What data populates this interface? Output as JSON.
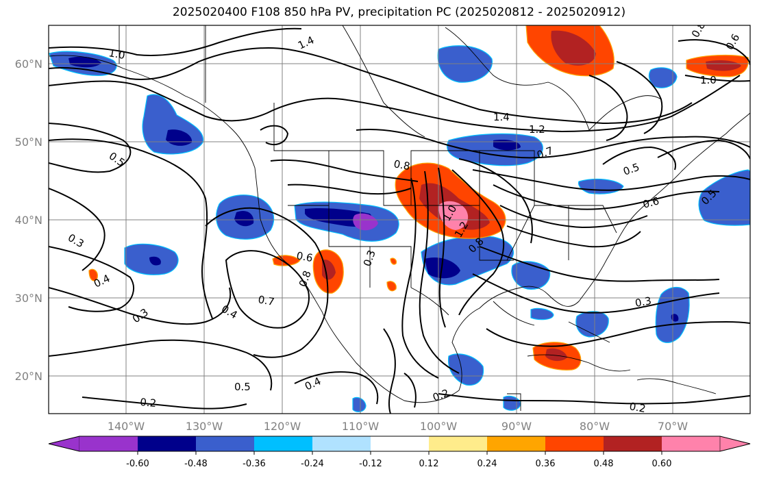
{
  "title": "2025020400 F108 850 hPa PV, precipitation PC (2025020812 - 2025020912)",
  "map": {
    "lat_labels": [
      "60°N",
      "50°N",
      "40°N",
      "30°N",
      "20°N"
    ],
    "lon_labels": [
      "140°W",
      "130°W",
      "120°W",
      "110°W",
      "100°W",
      "90°W",
      "80°W",
      "70°W"
    ],
    "contour_labels": [
      "1.0",
      "1.4",
      "0.5",
      "0.3",
      "0.4",
      "0.3",
      "0.4",
      "0.7",
      "0.6",
      "0.8",
      "0.5",
      "0.2",
      "0.4",
      "0.3",
      "1.4",
      "1.2",
      "0.8",
      "1.0",
      "1.2",
      "0.8",
      "0.7",
      "0.5",
      "0.6",
      "0.5",
      "0.3",
      "0.2",
      "0.2",
      "1.0",
      "0.6",
      "0.8"
    ]
  },
  "colorbar": {
    "colors": [
      "#9933cc",
      "#00008b",
      "#3a5fcd",
      "#00bfff",
      "#b0e2ff",
      "#ffffff",
      "#ffec8b",
      "#ffa500",
      "#ff4500",
      "#b22222",
      "#ff82ab"
    ],
    "tick_labels": [
      "-0.60",
      "-0.48",
      "-0.36",
      "-0.24",
      "-0.12",
      "0.12",
      "0.24",
      "0.36",
      "0.48",
      "0.60"
    ]
  }
}
